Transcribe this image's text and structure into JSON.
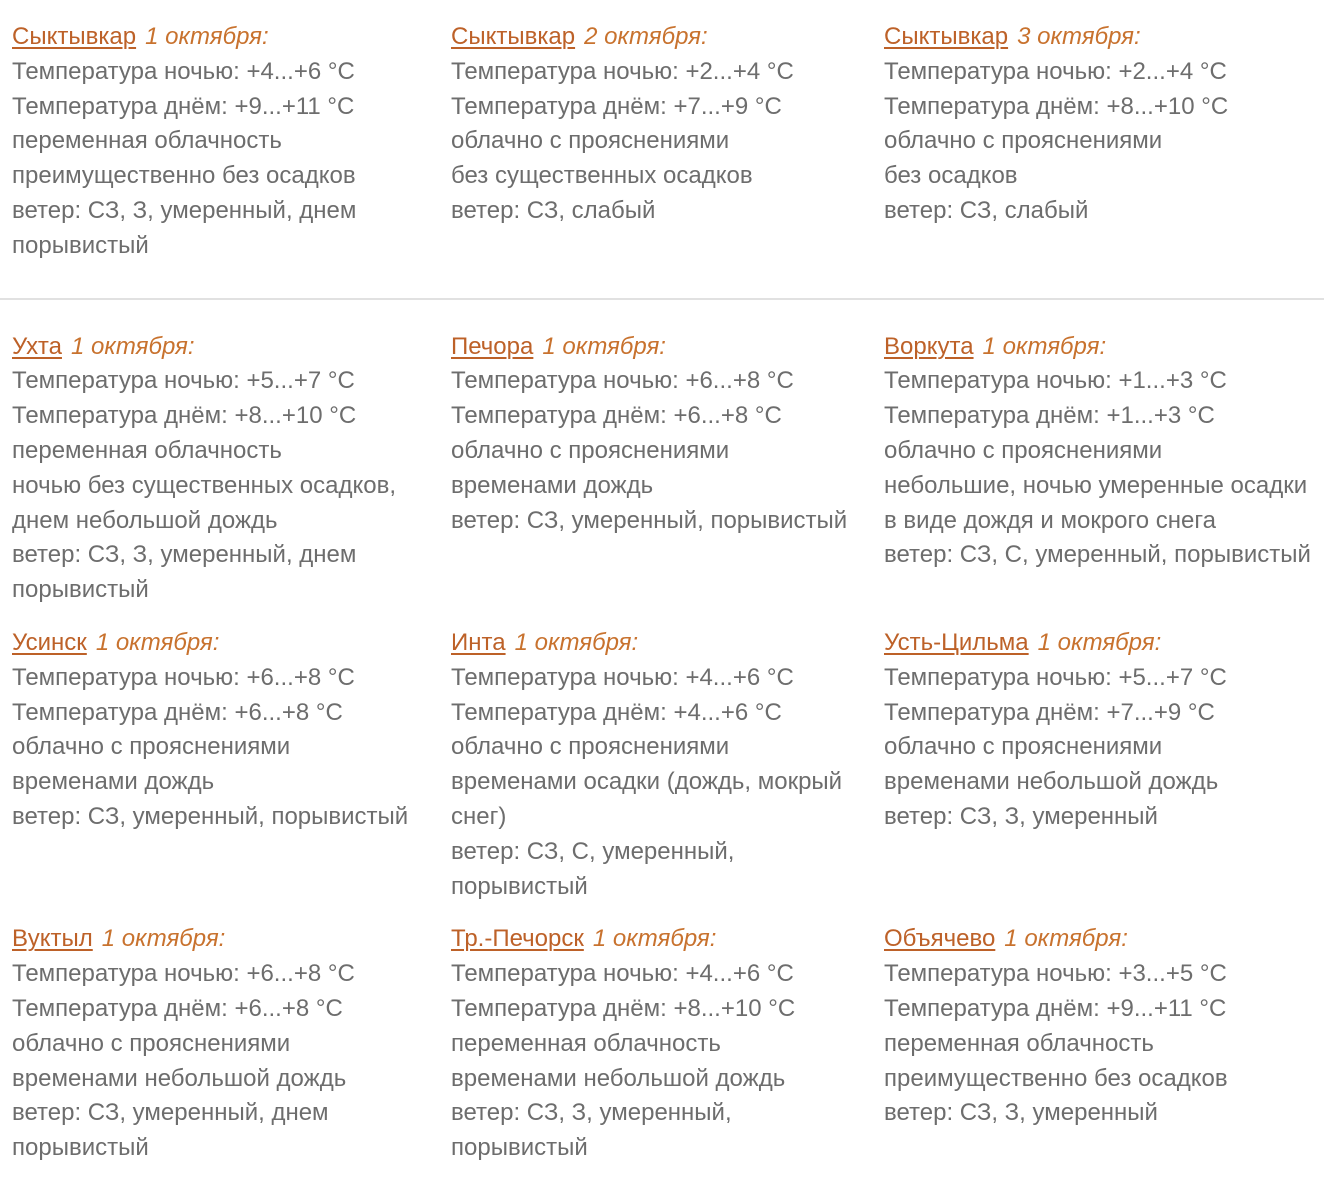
{
  "page": {
    "language": "ru",
    "text_color": "#6d6d6d",
    "city_link_color": "#bd6128",
    "date_color": "#c8722e",
    "divider_color": "#e1e1e1"
  },
  "sections": [
    {
      "name": "syktyvkar-three-days",
      "blocks": [
        {
          "city": "Сыктывкар",
          "date": "1 октября:",
          "lines": [
            "Температура ночью: +4...+6 °C",
            "Температура днём: +9...+11 °C",
            "переменная облачность",
            "преимущественно без осадков",
            "ветер: СЗ, З, умеренный, днем",
            "порывистый"
          ]
        },
        {
          "city": "Сыктывкар",
          "date": "2 октября:",
          "lines": [
            "Температура ночью: +2...+4 °C",
            "Температура днём: +7...+9 °C",
            "облачно с прояснениями",
            "без существенных осадков",
            "ветер: СЗ, слабый"
          ]
        },
        {
          "city": "Сыктывкар",
          "date": "3 октября:",
          "lines": [
            "Температура ночью: +2...+4 °C",
            "Температура днём: +8...+10 °C",
            "облачно с прояснениями",
            "без осадков",
            "ветер: СЗ, слабый"
          ]
        }
      ]
    },
    {
      "name": "other-cities",
      "blocks": [
        {
          "city": "Ухта",
          "date": "1 октября:",
          "lines": [
            "Температура ночью: +5...+7 °C",
            "Температура днём: +8...+10 °C",
            "переменная облачность",
            "ночью без существенных осадков,",
            "днем небольшой дождь",
            "ветер: СЗ, З, умеренный, днем",
            "порывистый"
          ]
        },
        {
          "city": "Печора",
          "date": "1 октября:",
          "lines": [
            "Температура ночью: +6...+8 °C",
            "Температура днём: +6...+8 °C",
            "облачно с прояснениями",
            "временами дождь",
            "ветер: СЗ, умеренный, порывистый"
          ]
        },
        {
          "city": "Воркута",
          "date": "1 октября:",
          "lines": [
            "Температура ночью: +1...+3 °C",
            "Температура днём: +1...+3 °C",
            "облачно с прояснениями",
            "небольшие, ночью умеренные осадки",
            "в виде дождя и мокрого снега",
            "ветер: СЗ, С, умеренный, порывистый"
          ]
        },
        {
          "city": "Усинск",
          "date": "1 октября:",
          "lines": [
            "Температура ночью: +6...+8 °C",
            "Температура днём: +6...+8 °C",
            "облачно с прояснениями",
            "временами дождь",
            "ветер: СЗ, умеренный, порывистый"
          ]
        },
        {
          "city": "Инта",
          "date": "1 октября:",
          "lines": [
            "Температура ночью: +4...+6 °C",
            "Температура днём: +4...+6 °C",
            "облачно с прояснениями",
            "временами осадки (дождь, мокрый",
            "снег)",
            "ветер: СЗ, С, умеренный, порывистый"
          ]
        },
        {
          "city": "Усть-Цильма",
          "date": "1 октября:",
          "lines": [
            "Температура ночью: +5...+7 °C",
            "Температура днём: +7...+9 °C",
            "облачно с прояснениями",
            "временами небольшой дождь",
            "ветер: СЗ, З, умеренный"
          ]
        },
        {
          "city": "Вуктыл",
          "date": "1 октября:",
          "lines": [
            "Температура ночью: +6...+8 °C",
            "Температура днём: +6...+8 °C",
            "облачно с прояснениями",
            "временами небольшой дождь",
            "ветер: СЗ, умеренный, днем",
            "порывистый"
          ]
        },
        {
          "city": "Тр.-Печорск",
          "date": "1 октября:",
          "lines": [
            "Температура ночью: +4...+6 °C",
            "Температура днём: +8...+10 °C",
            "переменная облачность",
            "временами небольшой дождь",
            "ветер: СЗ, З, умеренный, порывистый"
          ]
        },
        {
          "city": "Объячево",
          "date": "1 октября:",
          "lines": [
            "Температура ночью: +3...+5 °C",
            "Температура днём: +9...+11 °C",
            "переменная облачность",
            "преимущественно без осадков",
            "ветер: СЗ, З, умеренный"
          ]
        }
      ]
    }
  ]
}
